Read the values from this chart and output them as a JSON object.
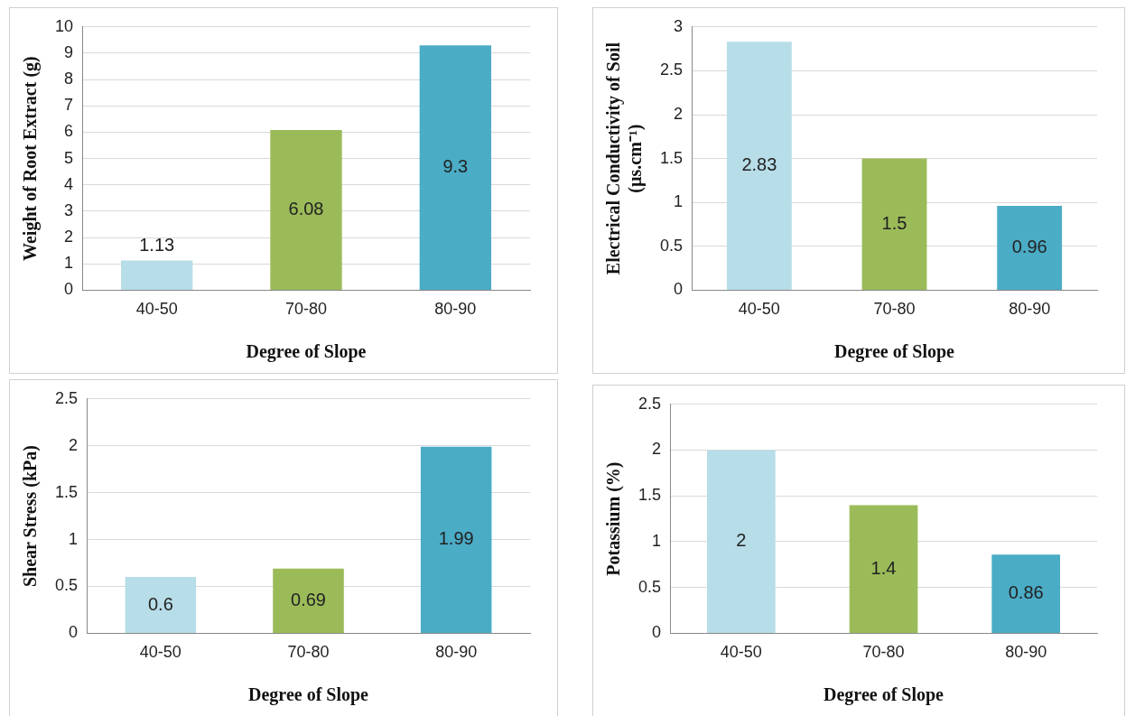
{
  "chart_data": [
    {
      "type": "bar",
      "categories": [
        "40-50",
        "70-80",
        "80-90"
      ],
      "values": [
        1.13,
        6.08,
        9.3
      ],
      "colors": [
        "#b7dde8",
        "#9bbb59",
        "#4bacc6"
      ],
      "xlabel": "Degree of Slope",
      "ylabel": "Weight of Root Extract (g)",
      "ylim": [
        0,
        10
      ],
      "yticks": [
        0,
        1,
        2,
        3,
        4,
        5,
        6,
        7,
        8,
        9,
        10
      ],
      "grid": "y",
      "data_labels": true,
      "legend": false
    },
    {
      "type": "bar",
      "categories": [
        "40-50",
        "70-80",
        "80-90"
      ],
      "values": [
        2.83,
        1.5,
        0.96
      ],
      "colors": [
        "#b7dde8",
        "#9bbb59",
        "#4bacc6"
      ],
      "xlabel": "Degree of Slope",
      "ylabel": "Electrical Conductivity of Soil (µs.cm⁻¹)",
      "ylim": [
        0,
        3
      ],
      "yticks": [
        0,
        0.5,
        1,
        1.5,
        2,
        2.5,
        3
      ],
      "grid": "y",
      "data_labels": true,
      "legend": false
    },
    {
      "type": "bar",
      "categories": [
        "40-50",
        "70-80",
        "80-90"
      ],
      "values": [
        0.6,
        0.69,
        1.99
      ],
      "colors": [
        "#b7dde8",
        "#9bbb59",
        "#4bacc6"
      ],
      "xlabel": "Degree of Slope",
      "ylabel": "Shear Stress (kPa)",
      "ylim": [
        0,
        2.5
      ],
      "yticks": [
        0,
        0.5,
        1,
        1.5,
        2,
        2.5
      ],
      "grid": "y",
      "data_labels": true,
      "legend": false
    },
    {
      "type": "bar",
      "categories": [
        "40-50",
        "70-80",
        "80-90"
      ],
      "values": [
        2,
        1.4,
        0.86
      ],
      "colors": [
        "#b7dde8",
        "#9bbb59",
        "#4bacc6"
      ],
      "xlabel": "Degree of Slope",
      "ylabel": "Potassium (%)",
      "ylim": [
        0,
        2.5
      ],
      "yticks": [
        0,
        0.5,
        1,
        1.5,
        2,
        2.5
      ],
      "grid": "y",
      "data_labels": true,
      "legend": false
    }
  ]
}
